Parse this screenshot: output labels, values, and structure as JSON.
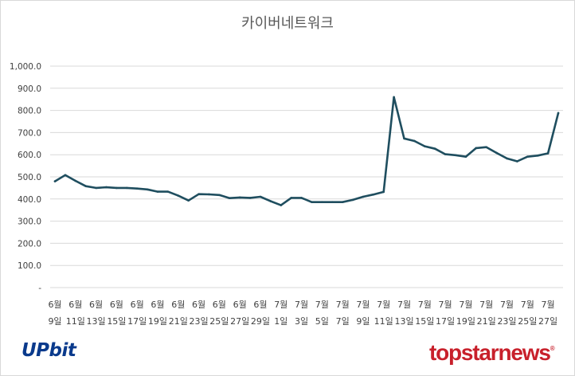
{
  "chart_data": {
    "type": "line",
    "title": "카이버네트워크",
    "xlabel": "",
    "ylabel": "",
    "ylim": [
      0,
      1000
    ],
    "y_ticks": [
      "-",
      "100.0",
      "200.0",
      "300.0",
      "400.0",
      "500.0",
      "600.0",
      "700.0",
      "800.0",
      "900.0",
      "1,000.0"
    ],
    "grid": true,
    "legend": "none",
    "line_color": "#1f4e5f",
    "x_month_labels": [
      "6월",
      "6월",
      "6월",
      "6월",
      "6월",
      "6월",
      "6월",
      "6월",
      "6월",
      "6월",
      "6월",
      "7월",
      "7월",
      "7월",
      "7월",
      "7월",
      "7월",
      "7월",
      "7월",
      "7월",
      "7월",
      "7월",
      "7월",
      "7월",
      "7월"
    ],
    "x_day_labels": [
      "9일",
      "11일",
      "13일",
      "15일",
      "17일",
      "19일",
      "21일",
      "23일",
      "25일",
      "27일",
      "29일",
      "1일",
      "3일",
      "5일",
      "7일",
      "9일",
      "11일",
      "13일",
      "15일",
      "17일",
      "19일",
      "21일",
      "23일",
      "25일",
      "27일"
    ],
    "series": [
      {
        "values": [
          480,
          508,
          482,
          458,
          450,
          453,
          450,
          450,
          447,
          443,
          433,
          433,
          415,
          393,
          422,
          421,
          418,
          404,
          407,
          405,
          410,
          390,
          372,
          405,
          405,
          386,
          386,
          386,
          386,
          396,
          410,
          420,
          432,
          860,
          673,
          662,
          638,
          627,
          602,
          598,
          591,
          630,
          634,
          608,
          583,
          570,
          591,
          596,
          606,
          788
        ]
      }
    ]
  },
  "logos": {
    "upbit": "UPbit",
    "topstarnews": "topstarnews",
    "topstarnews_mark": "®"
  }
}
